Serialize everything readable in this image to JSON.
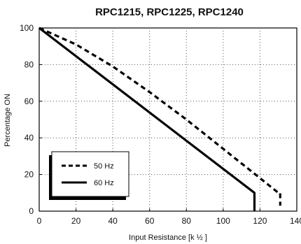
{
  "chart_data": {
    "type": "line",
    "title": "RPC1215, RPC1225, RPC1240",
    "xlabel": "Input Resistance  [k ½ ]",
    "ylabel": "Percentage ON",
    "xlim": [
      0,
      140
    ],
    "ylim": [
      0,
      100
    ],
    "xticks": [
      "0",
      "20",
      "40",
      "60",
      "80",
      "100",
      "120",
      "140"
    ],
    "yticks": [
      "0",
      "20",
      "40",
      "60",
      "80",
      "100"
    ],
    "grid": true,
    "legend_position": "bottom-left",
    "series": [
      {
        "name": "50 Hz",
        "style": "dashed",
        "color": "#000000",
        "points": [
          [
            0,
            100
          ],
          [
            20,
            91
          ],
          [
            40,
            79
          ],
          [
            60,
            65
          ],
          [
            80,
            50
          ],
          [
            100,
            34
          ],
          [
            120,
            18
          ],
          [
            130,
            10
          ],
          [
            131,
            10
          ],
          [
            131,
            3
          ]
        ]
      },
      {
        "name": "60 Hz",
        "style": "solid",
        "color": "#000000",
        "points": [
          [
            0,
            100
          ],
          [
            117,
            10
          ],
          [
            117,
            0
          ]
        ]
      }
    ]
  }
}
